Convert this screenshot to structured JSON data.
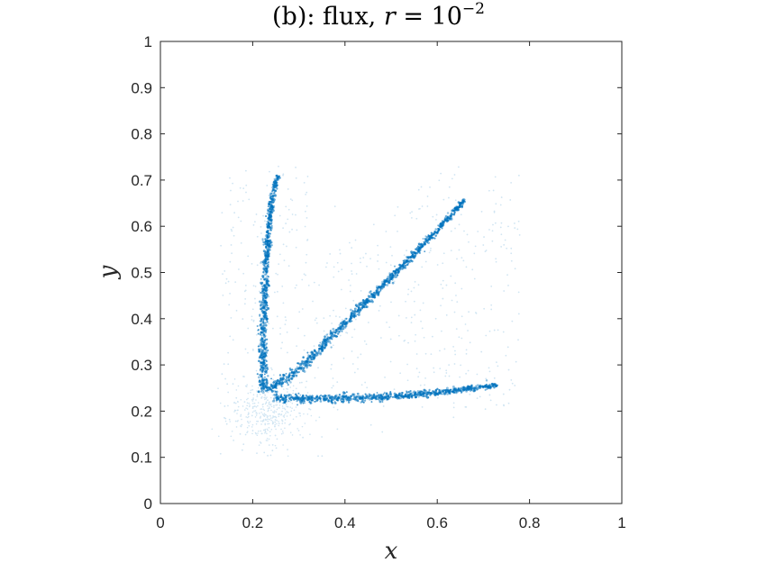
{
  "chart_data": {
    "type": "scatter",
    "title": {
      "prefix": "(b): flux, ",
      "var": "r",
      "eq": " = 10",
      "exp": "−2"
    },
    "xlabel": "x",
    "ylabel": "y",
    "xlim": [
      0,
      1
    ],
    "ylim": [
      0,
      1
    ],
    "xticks": [
      "0",
      "0.2",
      "0.4",
      "0.6",
      "0.8",
      "1"
    ],
    "yticks": [
      "0",
      "0.1",
      "0.2",
      "0.3",
      "0.4",
      "0.5",
      "0.6",
      "0.7",
      "0.8",
      "0.9",
      "1"
    ],
    "grid": false,
    "color": "#0072BD",
    "branches": [
      {
        "name": "vertical branch",
        "points": [
          [
            0.225,
            0.24
          ],
          [
            0.222,
            0.3
          ],
          [
            0.223,
            0.38
          ],
          [
            0.226,
            0.46
          ],
          [
            0.23,
            0.54
          ],
          [
            0.237,
            0.62
          ],
          [
            0.248,
            0.69
          ],
          [
            0.255,
            0.71
          ]
        ]
      },
      {
        "name": "diagonal branch",
        "points": [
          [
            0.235,
            0.245
          ],
          [
            0.3,
            0.29
          ],
          [
            0.4,
            0.39
          ],
          [
            0.5,
            0.49
          ],
          [
            0.6,
            0.59
          ],
          [
            0.66,
            0.66
          ]
        ]
      },
      {
        "name": "horizontal branch",
        "points": [
          [
            0.245,
            0.228
          ],
          [
            0.3,
            0.227
          ],
          [
            0.4,
            0.228
          ],
          [
            0.5,
            0.232
          ],
          [
            0.6,
            0.24
          ],
          [
            0.7,
            0.252
          ],
          [
            0.73,
            0.256
          ]
        ]
      }
    ],
    "diffuse_region": {
      "x_range": [
        0.13,
        0.78
      ],
      "y_range": [
        0.1,
        0.73
      ]
    }
  }
}
